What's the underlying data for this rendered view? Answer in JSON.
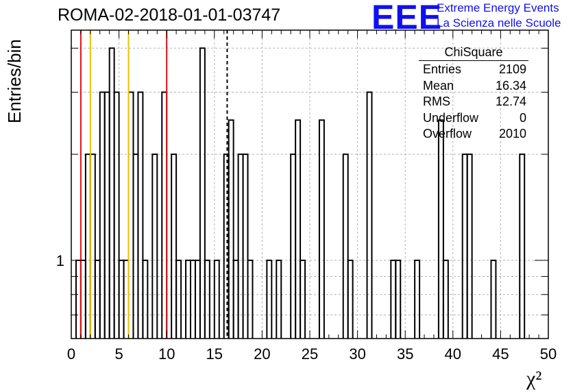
{
  "title": "ROMA-02-2018-01-01-03747",
  "logo": {
    "mark": "EEE",
    "line1": "Extreme Energy Events",
    "line2": "La Scienza nelle Scuole",
    "color": "#1010ee"
  },
  "stats": {
    "title": "ChiSquare",
    "rows": [
      {
        "label": "Entries",
        "value": "2109"
      },
      {
        "label": "Mean",
        "value": "16.34"
      },
      {
        "label": "RMS",
        "value": "12.74"
      },
      {
        "label": "Underflow",
        "value": "0"
      },
      {
        "label": "Overflow",
        "value": "2010"
      }
    ]
  },
  "colors": {
    "red_line": "#dd1111",
    "yellow_line": "#eec000",
    "hist": "#000000"
  },
  "chart_data": {
    "type": "histogram",
    "title": "ROMA-02-2018-01-01-03747",
    "xlabel": "χ²",
    "ylabel": "Entries/bin",
    "xlim": [
      0,
      50
    ],
    "ylim": [
      0.6,
      4.5
    ],
    "yscale": "log",
    "grid": true,
    "bin_width": 0.5,
    "x_ticks": [
      "0",
      "5",
      "10",
      "15",
      "20",
      "25",
      "30",
      "35",
      "40",
      "45",
      "50"
    ],
    "y_tick_labels": [
      "1"
    ],
    "bins": [
      {
        "x": 0.5,
        "y": 1
      },
      {
        "x": 1.0,
        "y": 1
      },
      {
        "x": 1.5,
        "y": 2
      },
      {
        "x": 2.0,
        "y": 2
      },
      {
        "x": 2.5,
        "y": 1
      },
      {
        "x": 3.0,
        "y": 3
      },
      {
        "x": 3.5,
        "y": 3
      },
      {
        "x": 4.0,
        "y": 4
      },
      {
        "x": 4.5,
        "y": 3
      },
      {
        "x": 5.0,
        "y": 1
      },
      {
        "x": 5.5,
        "y": 1
      },
      {
        "x": 6.0,
        "y": 3
      },
      {
        "x": 6.5,
        "y": 2
      },
      {
        "x": 7.0,
        "y": 3
      },
      {
        "x": 7.5,
        "y": 1
      },
      {
        "x": 8.5,
        "y": 2
      },
      {
        "x": 9.5,
        "y": 3
      },
      {
        "x": 10.5,
        "y": 2
      },
      {
        "x": 11.0,
        "y": 1
      },
      {
        "x": 12.0,
        "y": 1
      },
      {
        "x": 12.5,
        "y": 1
      },
      {
        "x": 13.0,
        "y": 1
      },
      {
        "x": 13.5,
        "y": 4
      },
      {
        "x": 14.0,
        "y": 1
      },
      {
        "x": 15.0,
        "y": 1
      },
      {
        "x": 16.0,
        "y": 2
      },
      {
        "x": 16.5,
        "y": 2.5
      },
      {
        "x": 17.0,
        "y": 1
      },
      {
        "x": 17.5,
        "y": 2
      },
      {
        "x": 18.0,
        "y": 2
      },
      {
        "x": 18.5,
        "y": 1
      },
      {
        "x": 20.5,
        "y": 1
      },
      {
        "x": 21.5,
        "y": 1
      },
      {
        "x": 23.0,
        "y": 2
      },
      {
        "x": 23.5,
        "y": 2.5
      },
      {
        "x": 24.0,
        "y": 1
      },
      {
        "x": 26.0,
        "y": 2.5
      },
      {
        "x": 28.5,
        "y": 2
      },
      {
        "x": 29.0,
        "y": 1
      },
      {
        "x": 31.0,
        "y": 3
      },
      {
        "x": 33.5,
        "y": 1
      },
      {
        "x": 34.0,
        "y": 1
      },
      {
        "x": 36.0,
        "y": 1
      },
      {
        "x": 38.5,
        "y": 2.5
      },
      {
        "x": 39.0,
        "y": 1
      },
      {
        "x": 41.0,
        "y": 2
      },
      {
        "x": 41.5,
        "y": 2
      },
      {
        "x": 44.0,
        "y": 1
      },
      {
        "x": 47.0,
        "y": 2
      }
    ],
    "vertical_lines": [
      {
        "x": 1.0,
        "color": "#dd1111",
        "style": "solid"
      },
      {
        "x": 2.0,
        "color": "#eec000",
        "style": "solid"
      },
      {
        "x": 6.0,
        "color": "#eec000",
        "style": "solid"
      },
      {
        "x": 10.0,
        "color": "#dd1111",
        "style": "solid"
      },
      {
        "x": 16.34,
        "color": "#000000",
        "style": "dashed"
      }
    ]
  }
}
